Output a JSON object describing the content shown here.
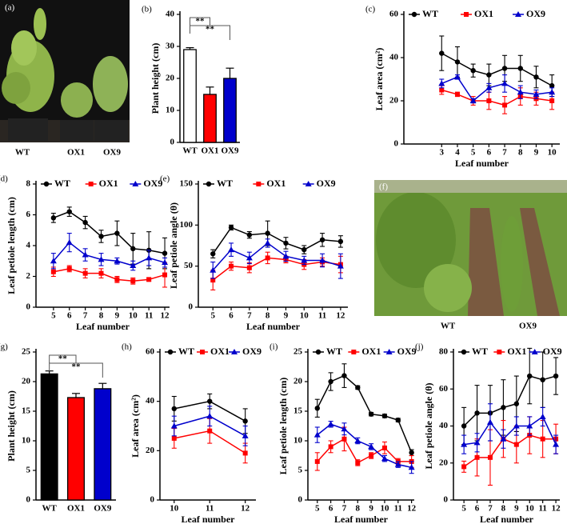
{
  "photos": [
    {
      "label": "(a)",
      "captions": [
        "WT",
        "OX1",
        "OX9"
      ]
    },
    {
      "label": "(f)",
      "captions": [
        "WT",
        "OX9"
      ]
    }
  ],
  "chart_data": [
    {
      "type": "bar",
      "label": "(b)",
      "ylabel": "Plant height (cm)",
      "categories": [
        "WT",
        "OX1",
        "OX9"
      ],
      "values": [
        29,
        15,
        20
      ],
      "errors": [
        0.6,
        2.3,
        3.2
      ],
      "colors": [
        "#ffffff",
        "#ff0000",
        "#0000cc"
      ],
      "ylim": [
        0,
        40
      ],
      "yticks": [
        0,
        10,
        20,
        30,
        40
      ],
      "annotations": [
        "**",
        "**"
      ]
    },
    {
      "type": "line",
      "label": "(c)",
      "ylabel": "Leaf area (cm²)",
      "xlabel": "Leaf number",
      "x": [
        3,
        4,
        5,
        6,
        7,
        8,
        9,
        10
      ],
      "xlim": [
        0.6,
        10.5
      ],
      "xticks": [
        3,
        4,
        5,
        6,
        7,
        8,
        9,
        10
      ],
      "ylim": [
        0,
        60
      ],
      "yticks": [
        0,
        20,
        40,
        60
      ],
      "series": [
        {
          "name": "WT",
          "color": "#000000",
          "marker": "circle",
          "values": [
            42,
            38,
            34,
            32,
            35,
            35,
            31,
            27
          ],
          "errors": [
            8,
            7,
            3,
            5,
            6,
            6,
            5,
            5
          ]
        },
        {
          "name": "OX1",
          "color": "#ff0000",
          "marker": "square",
          "values": [
            25,
            23,
            20,
            20,
            18,
            22,
            21,
            20
          ],
          "errors": [
            2,
            1,
            2,
            4,
            4,
            4,
            3,
            4
          ]
        },
        {
          "name": "OX9",
          "color": "#0000cc",
          "marker": "triangle",
          "values": [
            28,
            31,
            20,
            26,
            28,
            24,
            23,
            24
          ],
          "errors": [
            2,
            1,
            1,
            2,
            4,
            3,
            2,
            2
          ]
        }
      ]
    },
    {
      "type": "line",
      "label": "(d)",
      "ylabel": "Leaf petiole length (cm)",
      "xlabel": "Leaf number",
      "x": [
        5,
        6,
        7,
        8,
        9,
        10,
        11,
        12
      ],
      "xlim": [
        3.9,
        12.3
      ],
      "xticks": [
        5,
        6,
        7,
        8,
        9,
        10,
        11,
        12
      ],
      "ylim": [
        0,
        8
      ],
      "yticks": [
        0,
        2,
        4,
        6,
        8
      ],
      "series": [
        {
          "name": "WT",
          "color": "#000000",
          "marker": "circle",
          "values": [
            5.8,
            6.2,
            5.5,
            4.6,
            4.8,
            3.8,
            3.7,
            3.5
          ],
          "errors": [
            0.3,
            0.3,
            0.4,
            0.4,
            0.8,
            1.0,
            1.2,
            1.0
          ]
        },
        {
          "name": "OX1",
          "color": "#ff0000",
          "marker": "square",
          "values": [
            2.3,
            2.5,
            2.2,
            2.2,
            1.8,
            1.7,
            1.8,
            2.1
          ],
          "errors": [
            0.3,
            0.2,
            0.3,
            0.3,
            0.2,
            0.2,
            0.1,
            0.8
          ]
        },
        {
          "name": "OX9",
          "color": "#0000cc",
          "marker": "triangle",
          "values": [
            3.0,
            4.2,
            3.4,
            3.1,
            3.0,
            2.7,
            3.2,
            2.9
          ],
          "errors": [
            0.5,
            0.6,
            0.4,
            0.4,
            0.2,
            0.3,
            0.5,
            0.3
          ]
        }
      ]
    },
    {
      "type": "line",
      "label": "(e)",
      "ylabel": "Leaf petiole angle (θ)",
      "xlabel": "Leaf number",
      "x": [
        5,
        6,
        7,
        8,
        9,
        10,
        11,
        12
      ],
      "xlim": [
        4.2,
        12.4
      ],
      "xticks": [
        5,
        6,
        7,
        8,
        9,
        10,
        11,
        12
      ],
      "ylim": [
        0,
        150
      ],
      "yticks": [
        0,
        50,
        100,
        150
      ],
      "series": [
        {
          "name": "WT",
          "color": "#000000",
          "marker": "circle",
          "values": [
            65,
            97,
            88,
            90,
            78,
            70,
            82,
            80
          ],
          "errors": [
            5,
            3,
            4,
            15,
            7,
            5,
            8,
            7
          ]
        },
        {
          "name": "OX1",
          "color": "#ff0000",
          "marker": "square",
          "values": [
            33,
            50,
            48,
            60,
            58,
            52,
            55,
            52
          ],
          "errors": [
            12,
            5,
            6,
            7,
            4,
            6,
            5,
            10
          ]
        },
        {
          "name": "OX9",
          "color": "#0000cc",
          "marker": "triangle",
          "values": [
            45,
            70,
            60,
            78,
            62,
            57,
            57,
            50
          ],
          "errors": [
            10,
            8,
            7,
            5,
            6,
            5,
            8,
            15
          ]
        }
      ]
    },
    {
      "type": "bar",
      "label": "(g)",
      "ylabel": "Plant height (cm)",
      "categories": [
        "WT",
        "OX1",
        "OX9"
      ],
      "values": [
        21.3,
        17.3,
        18.8
      ],
      "errors": [
        0.5,
        0.7,
        0.9
      ],
      "colors": [
        "#000000",
        "#ff0000",
        "#0000cc"
      ],
      "ylim": [
        0,
        25
      ],
      "yticks": [
        0,
        5,
        10,
        15,
        20,
        25
      ],
      "annotations": [
        "**",
        "**"
      ]
    },
    {
      "type": "line",
      "label": "(h)",
      "ylabel": "Leaf area (cm²)",
      "xlabel": "Leaf number",
      "x": [
        10,
        11,
        12
      ],
      "xlim": [
        9.6,
        12.3
      ],
      "xticks": [
        10,
        11,
        12
      ],
      "ylim": [
        0,
        60
      ],
      "yticks": [
        0,
        20,
        40,
        60
      ],
      "series": [
        {
          "name": "WT",
          "color": "#000000",
          "marker": "circle",
          "values": [
            37,
            40,
            32
          ],
          "errors": [
            5,
            3,
            5
          ]
        },
        {
          "name": "OX1",
          "color": "#ff0000",
          "marker": "square",
          "values": [
            25,
            28,
            19
          ],
          "errors": [
            4,
            5,
            4
          ]
        },
        {
          "name": "OX9",
          "color": "#0000cc",
          "marker": "triangle",
          "values": [
            30,
            34,
            26
          ],
          "errors": [
            4,
            4,
            4
          ]
        }
      ]
    },
    {
      "type": "line",
      "label": "(i)",
      "ylabel": "Leaf petiole length (cm)",
      "xlabel": "Leaf number",
      "x": [
        5,
        6,
        7,
        8,
        9,
        10,
        11,
        12
      ],
      "xlim": [
        4.3,
        12.2
      ],
      "xticks": [
        5,
        6,
        7,
        8,
        9,
        10,
        11,
        12
      ],
      "ylim": [
        0,
        25
      ],
      "yticks": [
        0,
        5,
        10,
        15,
        20,
        25
      ],
      "series": [
        {
          "name": "WT",
          "color": "#000000",
          "marker": "circle",
          "values": [
            15.5,
            20,
            21,
            19,
            14.5,
            14.2,
            13.5,
            8
          ],
          "errors": [
            1.5,
            1.5,
            2,
            0.3,
            0.3,
            0.3,
            0.3,
            0.5
          ]
        },
        {
          "name": "OX1",
          "color": "#ff0000",
          "marker": "square",
          "values": [
            6.5,
            9,
            10.3,
            6.3,
            7.5,
            8.8,
            6.5,
            6.5
          ],
          "errors": [
            1.5,
            1,
            2,
            0.5,
            0.5,
            1,
            0.5,
            1
          ]
        },
        {
          "name": "OX9",
          "color": "#0000cc",
          "marker": "triangle",
          "values": [
            11,
            12.8,
            12,
            10,
            9,
            7,
            6,
            5.5
          ],
          "errors": [
            1.3,
            0.5,
            1,
            0.5,
            0.5,
            0.5,
            0.5,
            1
          ]
        }
      ]
    },
    {
      "type": "line",
      "label": "(j)",
      "ylabel": "Leaf petiole angle (θ)",
      "xlabel": "Leaf number",
      "x": [
        5,
        6,
        7,
        8,
        9,
        10,
        11,
        12
      ],
      "xlim": [
        4.2,
        12.3
      ],
      "xticks": [
        5,
        6,
        7,
        8,
        9,
        10,
        11,
        12
      ],
      "ylim": [
        0,
        80
      ],
      "yticks": [
        0,
        20,
        40,
        60,
        80
      ],
      "series": [
        {
          "name": "WT",
          "color": "#000000",
          "marker": "circle",
          "values": [
            40,
            47,
            47,
            50,
            52,
            67,
            65,
            67
          ],
          "errors": [
            10,
            15,
            15,
            15,
            15,
            15,
            15,
            10
          ]
        },
        {
          "name": "OX1",
          "color": "#ff0000",
          "marker": "square",
          "values": [
            18,
            23,
            23,
            33,
            30,
            35,
            33,
            33
          ],
          "errors": [
            3,
            10,
            15,
            10,
            10,
            10,
            10,
            8
          ]
        },
        {
          "name": "OX9",
          "color": "#0000cc",
          "marker": "triangle",
          "values": [
            30,
            31,
            42,
            33,
            40,
            40,
            45,
            30
          ],
          "errors": [
            5,
            5,
            10,
            5,
            5,
            5,
            5,
            5
          ]
        }
      ]
    }
  ]
}
